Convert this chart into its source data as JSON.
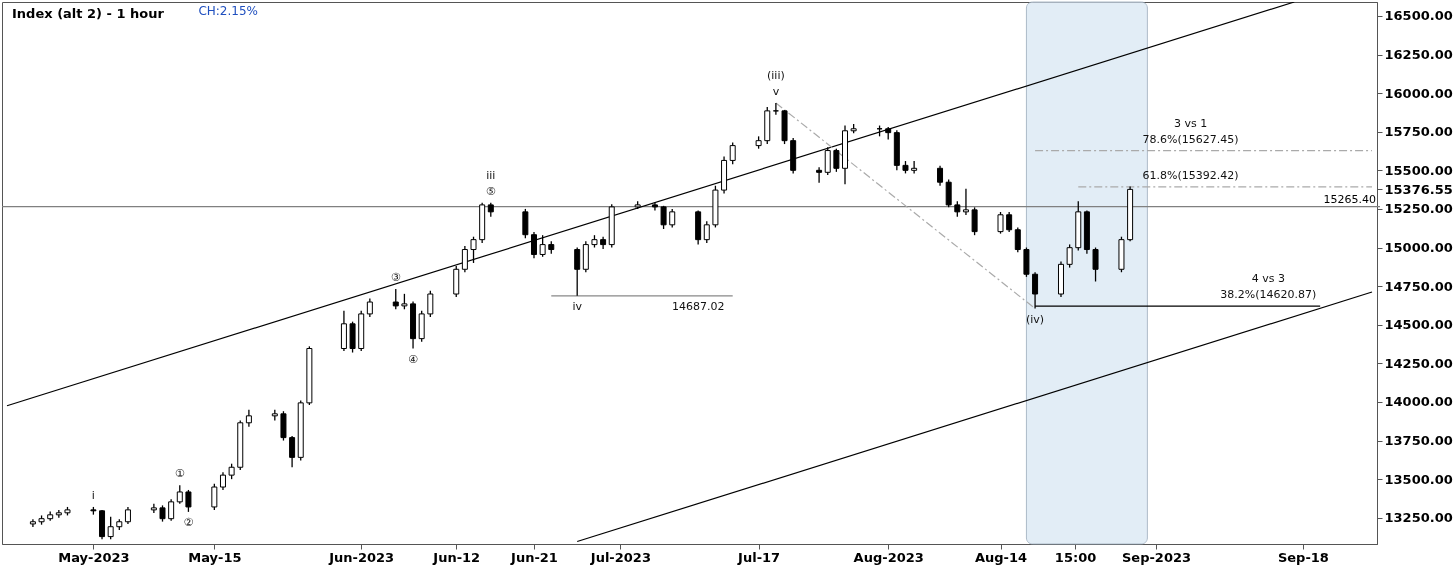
{
  "chart_data": {
    "type": "candlestick",
    "title": "Index (alt 2) - 1 hour",
    "subtitle": "CH:2.15%",
    "color": "#000000",
    "x": [
      "2023-04-24",
      "2023-04-25",
      "2023-04-26",
      "2023-04-27",
      "2023-04-28",
      "2023-05-01",
      "2023-05-02",
      "2023-05-03",
      "2023-05-04",
      "2023-05-05",
      "2023-05-08",
      "2023-05-09",
      "2023-05-10",
      "2023-05-11",
      "2023-05-12",
      "2023-05-15",
      "2023-05-16",
      "2023-05-17",
      "2023-05-18",
      "2023-05-19",
      "2023-05-22",
      "2023-05-23",
      "2023-05-24",
      "2023-05-25",
      "2023-05-26",
      "2023-05-30",
      "2023-05-31",
      "2023-06-01",
      "2023-06-02",
      "2023-06-05",
      "2023-06-06",
      "2023-06-07",
      "2023-06-08",
      "2023-06-09",
      "2023-06-12",
      "2023-06-13",
      "2023-06-14",
      "2023-06-15",
      "2023-06-16",
      "2023-06-20",
      "2023-06-21",
      "2023-06-22",
      "2023-06-23",
      "2023-06-26",
      "2023-06-27",
      "2023-06-28",
      "2023-06-29",
      "2023-06-30",
      "2023-07-03",
      "2023-07-05",
      "2023-07-06",
      "2023-07-07",
      "2023-07-10",
      "2023-07-11",
      "2023-07-12",
      "2023-07-13",
      "2023-07-14",
      "2023-07-17",
      "2023-07-18",
      "2023-07-19",
      "2023-07-20",
      "2023-07-21",
      "2023-07-24",
      "2023-07-25",
      "2023-07-26",
      "2023-07-27",
      "2023-07-28",
      "2023-07-31",
      "2023-08-01",
      "2023-08-02",
      "2023-08-03",
      "2023-08-04",
      "2023-08-07",
      "2023-08-08",
      "2023-08-09",
      "2023-08-10",
      "2023-08-11",
      "2023-08-14",
      "2023-08-15",
      "2023-08-16",
      "2023-08-17",
      "2023-08-18",
      "2023-08-21",
      "2023-08-22",
      "2023-08-23",
      "2023-08-24",
      "2023-08-25",
      "2023-08-28",
      "2023-08-29"
    ],
    "ohlc": [
      [
        13210,
        13240,
        13190,
        13224
      ],
      [
        13224,
        13265,
        13205,
        13244
      ],
      [
        13244,
        13290,
        13230,
        13269
      ],
      [
        13269,
        13300,
        13250,
        13282
      ],
      [
        13282,
        13320,
        13265,
        13301
      ],
      [
        13301,
        13320,
        13270,
        13295
      ],
      [
        13295,
        13300,
        13110,
        13128
      ],
      [
        13128,
        13256,
        13110,
        13192
      ],
      [
        13192,
        13240,
        13170,
        13224
      ],
      [
        13224,
        13320,
        13210,
        13301
      ],
      [
        13301,
        13340,
        13280,
        13314
      ],
      [
        13314,
        13330,
        13225,
        13244
      ],
      [
        13244,
        13370,
        13230,
        13353
      ],
      [
        13353,
        13461,
        13340,
        13417
      ],
      [
        13417,
        13430,
        13288,
        13320
      ],
      [
        13320,
        13470,
        13300,
        13449
      ],
      [
        13449,
        13545,
        13430,
        13526
      ],
      [
        13526,
        13600,
        13500,
        13577
      ],
      [
        13577,
        13880,
        13560,
        13865
      ],
      [
        13865,
        13949,
        13840,
        13910
      ],
      [
        13910,
        13949,
        13880,
        13923
      ],
      [
        13923,
        13940,
        13750,
        13769
      ],
      [
        13769,
        13780,
        13577,
        13641
      ],
      [
        13641,
        14010,
        13620,
        13994
      ],
      [
        13994,
        14360,
        13980,
        14346
      ],
      [
        14346,
        14590,
        14330,
        14506
      ],
      [
        14506,
        14520,
        14320,
        14346
      ],
      [
        14346,
        14590,
        14330,
        14570
      ],
      [
        14570,
        14670,
        14550,
        14647
      ],
      [
        14647,
        14731,
        14600,
        14622
      ],
      [
        14622,
        14700,
        14600,
        14635
      ],
      [
        14635,
        14650,
        14346,
        14410
      ],
      [
        14410,
        14590,
        14390,
        14570
      ],
      [
        14570,
        14720,
        14550,
        14699
      ],
      [
        14699,
        14880,
        14680,
        14859
      ],
      [
        14859,
        15010,
        14840,
        14987
      ],
      [
        14987,
        15070,
        14900,
        15051
      ],
      [
        15051,
        15290,
        15030,
        15276
      ],
      [
        15276,
        15290,
        15200,
        15231
      ],
      [
        15231,
        15250,
        15060,
        15083
      ],
      [
        15083,
        15100,
        14930,
        14955
      ],
      [
        14955,
        15080,
        14940,
        15019
      ],
      [
        15019,
        15040,
        14960,
        14987
      ],
      [
        14987,
        15000,
        14687,
        14859
      ],
      [
        14859,
        15040,
        14840,
        15019
      ],
      [
        15019,
        15080,
        15000,
        15051
      ],
      [
        15051,
        15070,
        14990,
        15019
      ],
      [
        15019,
        15280,
        15000,
        15263
      ],
      [
        15263,
        15300,
        15250,
        15276
      ],
      [
        15276,
        15290,
        15240,
        15263
      ],
      [
        15263,
        15270,
        15120,
        15147
      ],
      [
        15147,
        15250,
        15130,
        15231
      ],
      [
        15231,
        15240,
        15020,
        15051
      ],
      [
        15051,
        15170,
        15030,
        15147
      ],
      [
        15147,
        15400,
        15130,
        15372
      ],
      [
        15372,
        15590,
        15350,
        15564
      ],
      [
        15564,
        15680,
        15540,
        15660
      ],
      [
        15660,
        15720,
        15640,
        15692
      ],
      [
        15692,
        15910,
        15670,
        15885
      ],
      [
        15885,
        15936,
        15860,
        15885
      ],
      [
        15885,
        15890,
        15670,
        15692
      ],
      [
        15692,
        15710,
        15480,
        15500
      ],
      [
        15500,
        15520,
        15420,
        15487
      ],
      [
        15487,
        15650,
        15470,
        15628
      ],
      [
        15628,
        15640,
        15490,
        15513
      ],
      [
        15513,
        15790,
        15410,
        15756
      ],
      [
        15756,
        15800,
        15740,
        15769
      ],
      [
        15769,
        15790,
        15720,
        15769
      ],
      [
        15769,
        15780,
        15700,
        15744
      ],
      [
        15744,
        15760,
        15500,
        15532
      ],
      [
        15532,
        15560,
        15480,
        15500
      ],
      [
        15500,
        15560,
        15480,
        15513
      ],
      [
        15513,
        15530,
        15400,
        15423
      ],
      [
        15423,
        15440,
        15260,
        15276
      ],
      [
        15276,
        15300,
        15200,
        15231
      ],
      [
        15231,
        15380,
        15210,
        15244
      ],
      [
        15244,
        15260,
        15080,
        15103
      ],
      [
        15103,
        15230,
        15090,
        15212
      ],
      [
        15212,
        15230,
        15100,
        15115
      ],
      [
        15115,
        15130,
        14970,
        14987
      ],
      [
        14987,
        15000,
        14810,
        14827
      ],
      [
        14827,
        14840,
        14605,
        14699
      ],
      [
        14699,
        14910,
        14680,
        14891
      ],
      [
        14891,
        15020,
        14870,
        14999
      ],
      [
        14999,
        15300,
        14980,
        15231
      ],
      [
        15231,
        15240,
        14960,
        14987
      ],
      [
        14987,
        15000,
        14780,
        14859
      ],
      [
        14859,
        15070,
        14840,
        15051
      ],
      [
        15051,
        15395,
        15040,
        15376.55
      ]
    ],
    "series": [
      {
        "type": "line",
        "color": "#000000",
        "x": [
          "2023-04-21",
          "2023-09-17"
        ],
        "values": [
          13975,
          16590
        ]
      },
      {
        "type": "line",
        "color": "#000000",
        "x": [
          "2023-06-26",
          "2023-09-26"
        ],
        "values": [
          13096,
          14712
        ]
      },
      {
        "type": "line",
        "color": "#aaaaaa",
        "line_style": "dashed",
        "x": [
          "2023-07-19",
          "2023-08-18"
        ],
        "values": [
          15936,
          14605
        ]
      },
      {
        "type": "line",
        "color": "#888888",
        "x": [
          "2023-06-23",
          "2023-07-14"
        ],
        "values": [
          14687.02,
          14687.02
        ]
      },
      {
        "type": "line",
        "color": "#aaaaaa",
        "line_style": "dashed",
        "x": [
          "2023-08-18",
          "2023-09-26"
        ],
        "values": [
          15627.45,
          15627.45
        ]
      },
      {
        "type": "line",
        "color": "#aaaaaa",
        "line_style": "dashed",
        "x": [
          "2023-08-23",
          "2023-09-26"
        ],
        "values": [
          15392.42,
          15392.42
        ]
      },
      {
        "type": "line",
        "color": "#000000",
        "x": [
          "2023-08-18",
          "2023-09-20"
        ],
        "values": [
          14620.87,
          14620.87
        ]
      }
    ],
    "ref_lines": [
      {
        "axis": "y",
        "value": 15265.4,
        "label": "15265.40",
        "color": "#808080"
      }
    ],
    "bands": [
      {
        "axis": "x",
        "from": "2023-08-17",
        "to": "2023-08-31",
        "color": "#dce9f5"
      }
    ],
    "annotations": [
      {
        "text": "i",
        "x": "2023-05-01",
        "y": 13320
      },
      {
        "text": "①",
        "x": "2023-05-11",
        "y": 13461
      },
      {
        "text": "②",
        "x": "2023-05-12",
        "y": 13288
      },
      {
        "text": "③",
        "x": "2023-06-05",
        "y": 14731
      },
      {
        "text": "④",
        "x": "2023-06-07",
        "y": 14346
      },
      {
        "text": "⑤",
        "x": "2023-06-16",
        "y": 15290
      },
      {
        "text": "iii",
        "x": "2023-06-16",
        "y": 15290
      },
      {
        "text": "iv",
        "x": "2023-06-26",
        "y": 14687
      },
      {
        "text": "v",
        "x": "2023-07-19",
        "y": 15936
      },
      {
        "text": "(iii)",
        "x": "2023-07-19",
        "y": 15936
      },
      {
        "text": "(iv)",
        "x": "2023-08-18",
        "y": 14605
      },
      {
        "text": "78.6%(15627.45)",
        "x": "2023-09-05",
        "y": 15627.45
      },
      {
        "text": "3 vs 1",
        "x": "2023-09-05",
        "y": 15627.45
      },
      {
        "text": "61.8%(15392.42)",
        "x": "2023-09-05",
        "y": 15392.42
      },
      {
        "text": "38.2%(14620.87)",
        "x": "2023-09-14",
        "y": 14620.87
      },
      {
        "text": "4 vs 3",
        "x": "2023-09-14",
        "y": 14620.87
      },
      {
        "text": "14687.02",
        "x": "2023-07-10",
        "y": 14687.02
      }
    ],
    "xlim": [
      "2023-04-21",
      "2023-09-26"
    ],
    "ylim": [
      13080,
      16590
    ],
    "xticks": [
      {
        "value": "2023-05-01",
        "label": "May-2023"
      },
      {
        "value": "2023-05-15",
        "label": "May-15"
      },
      {
        "value": "2023-06-01",
        "label": "Jun-2023"
      },
      {
        "value": "2023-06-12",
        "label": "Jun-12"
      },
      {
        "value": "2023-06-21",
        "label": "Jun-21"
      },
      {
        "value": "2023-07-01",
        "label": "Jul-2023"
      },
      {
        "value": "2023-07-17",
        "label": "Jul-17"
      },
      {
        "value": "2023-08-01",
        "label": "Aug-2023"
      },
      {
        "value": "2023-08-14",
        "label": "Aug-14"
      },
      {
        "value": "2023-08-22T15:00",
        "label": "15:00"
      },
      {
        "value": "2023-09-01",
        "label": "Sep-2023"
      },
      {
        "value": "2023-09-18",
        "label": "Sep-18"
      }
    ],
    "yticks": [
      {
        "value": 13250,
        "label": "13250.00"
      },
      {
        "value": 13500,
        "label": "13500.00"
      },
      {
        "value": 13750,
        "label": "13750.00"
      },
      {
        "value": 14000,
        "label": "14000.00"
      },
      {
        "value": 14250,
        "label": "14250.00"
      },
      {
        "value": 14500,
        "label": "14500.00"
      },
      {
        "value": 14750,
        "label": "14750.00"
      },
      {
        "value": 15000,
        "label": "15000.00"
      },
      {
        "value": 15250,
        "label": "15250.00"
      },
      {
        "value": 15376.55,
        "label": "15376.55"
      },
      {
        "value": 15500,
        "label": "15500.00"
      },
      {
        "value": 15750,
        "label": "15750.00"
      },
      {
        "value": 16000,
        "label": "16000.00"
      },
      {
        "value": 16250,
        "label": "16250.00"
      },
      {
        "value": 16500,
        "label": "16500.00"
      }
    ],
    "grid": false
  }
}
